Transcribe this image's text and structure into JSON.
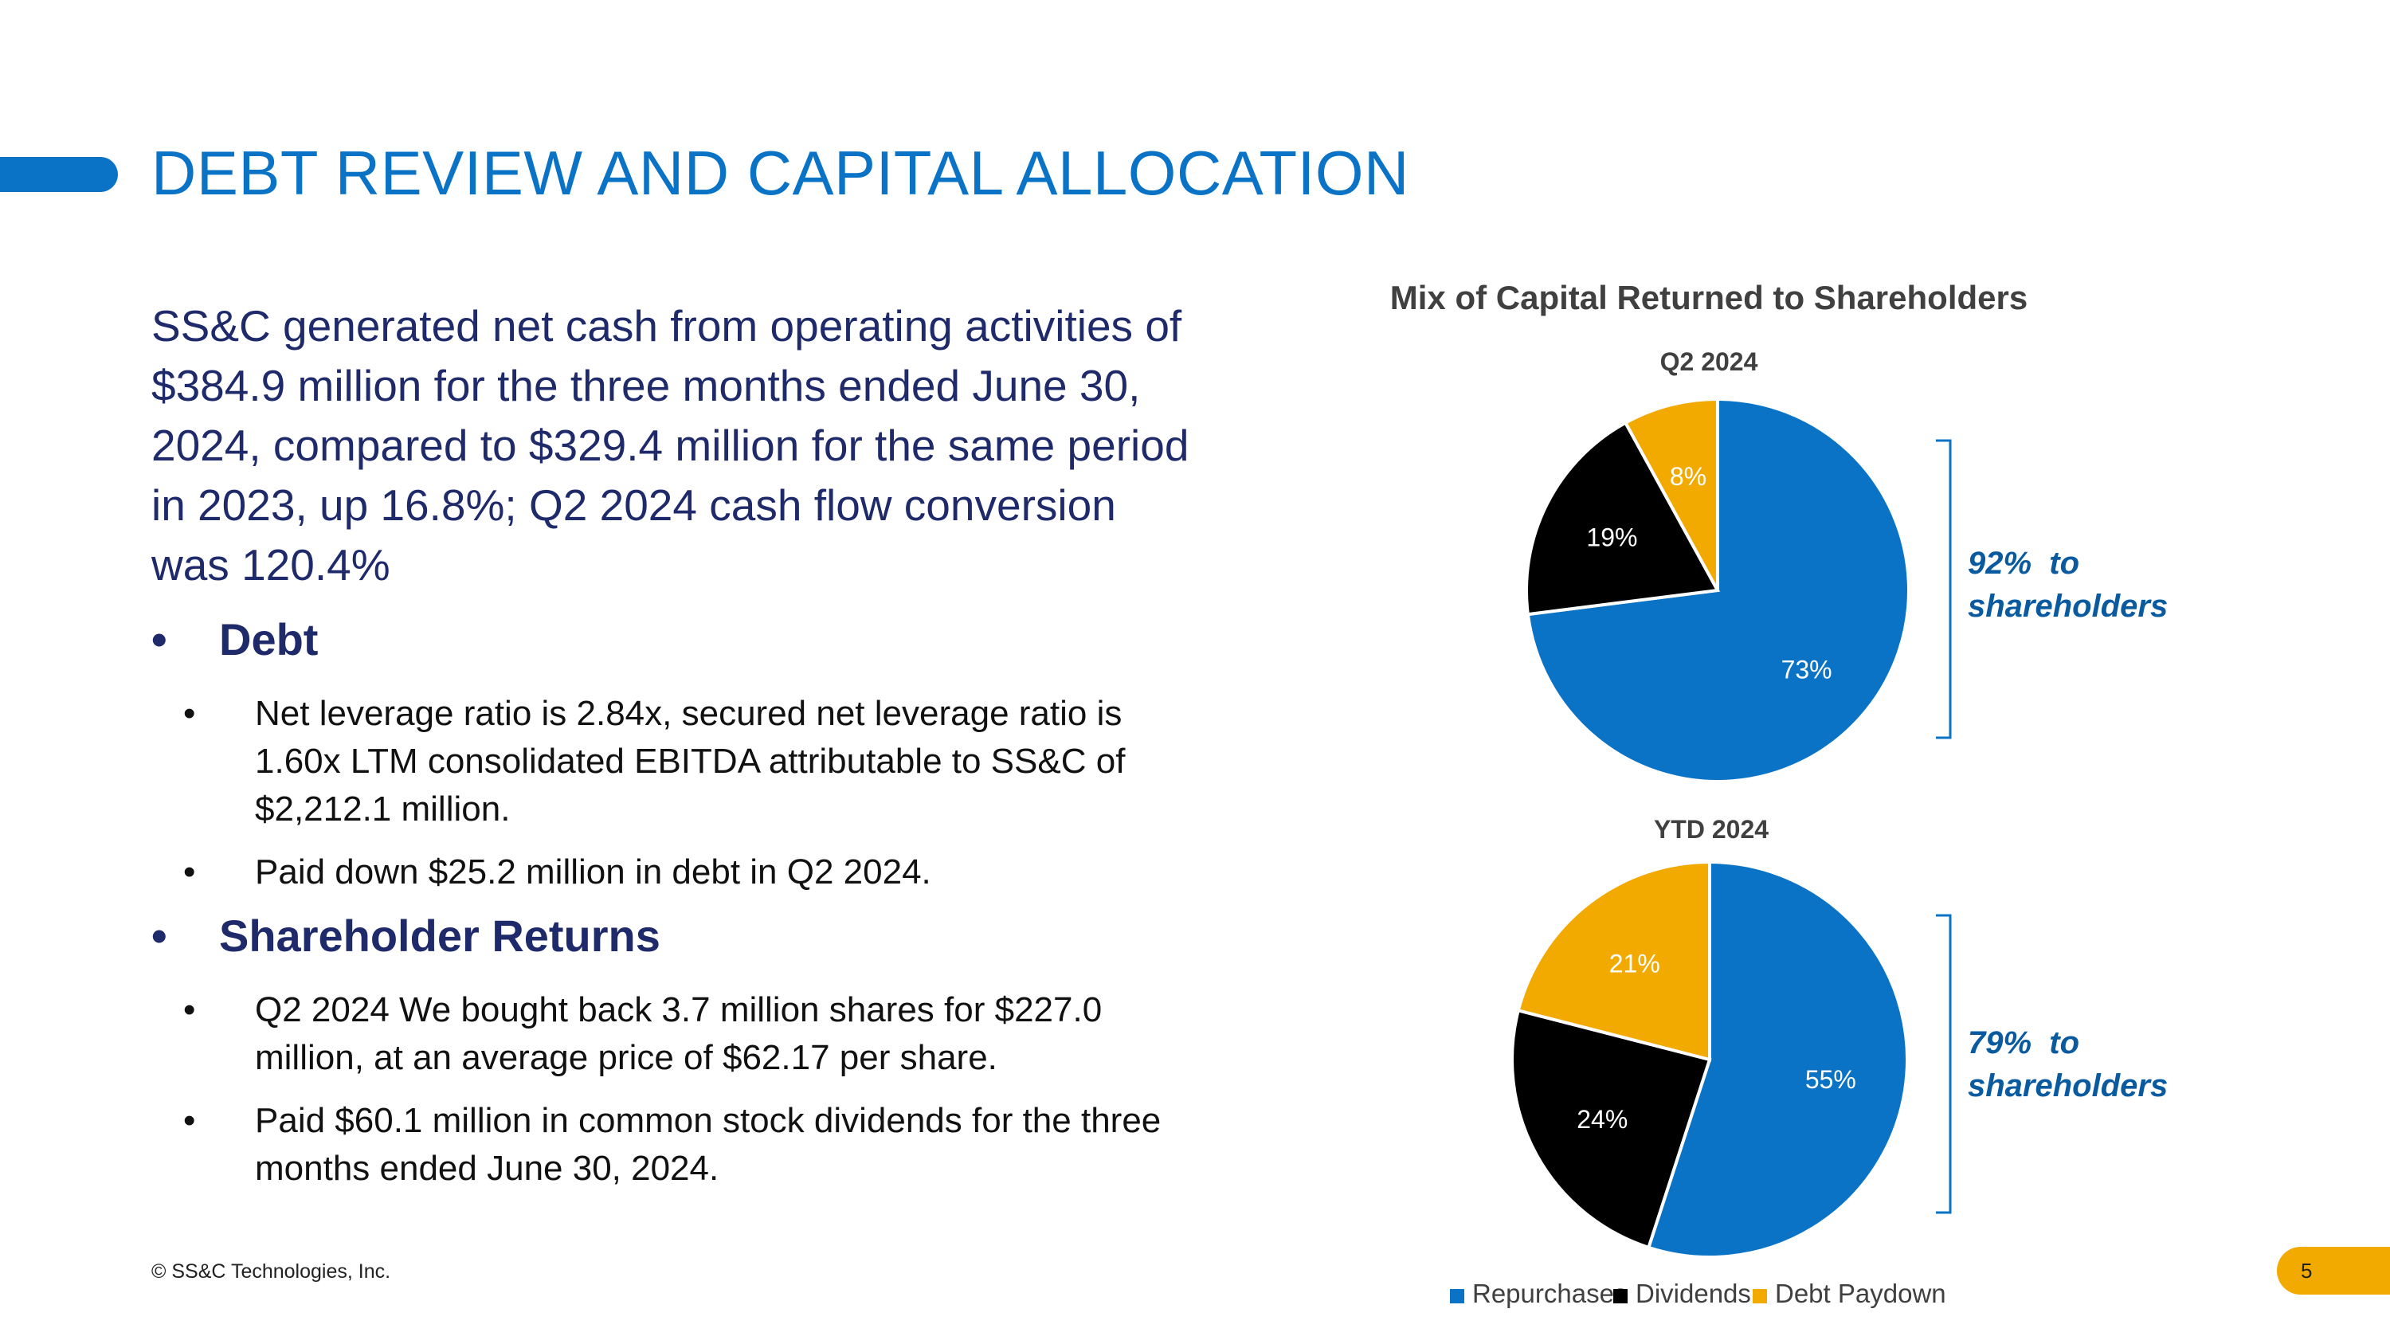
{
  "header": {
    "title": "DEBT REVIEW AND CAPITAL ALLOCATION"
  },
  "lead_text": "SS&C generated net cash from operating activities of $384.9 million for the three months ended June 30, 2024, compared to $329.4 million for the same period in 2023, up 16.8%; Q2 2024 cash flow conversion was 120.4%",
  "sections": [
    {
      "heading": "Debt",
      "bullets": [
        "Net leverage ratio is 2.84x, secured net leverage ratio is 1.60x LTM consolidated EBITDA attributable to SS&C of $2,212.1 million.",
        "Paid down $25.2 million in debt in Q2 2024."
      ]
    },
    {
      "heading": "Shareholder Returns",
      "bullets": [
        "Q2 2024 We bought back 3.7 million shares for $227.0 million, at an average price of $62.17 per share.",
        "Paid $60.1 million in common stock dividends for the three months ended June 30, 2024."
      ]
    }
  ],
  "footer": {
    "copyright": "© SS&C Technologies, Inc.",
    "page_number": "5"
  },
  "colors": {
    "accent": "#0a73c6",
    "navy": "#1f2a6b",
    "repurchases": "#0a73c6",
    "dividends": "#000000",
    "debt_paydown": "#f2a900"
  },
  "chart_data": [
    {
      "type": "pie",
      "title": "Mix of Capital Returned to Shareholders",
      "subtitle": "Q2 2024",
      "categories": [
        "Repurchases",
        "Dividends",
        "Debt Paydown"
      ],
      "values": [
        73,
        19,
        8
      ],
      "labels": [
        "73%",
        "19%",
        "8%"
      ],
      "annotation": "92%  to shareholders",
      "legend": [
        "Repurchases",
        "Dividends",
        "Debt Paydown"
      ],
      "legend_position": "bottom"
    },
    {
      "type": "pie",
      "subtitle": "YTD 2024",
      "categories": [
        "Repurchases",
        "Dividends",
        "Debt Paydown"
      ],
      "values": [
        55,
        24,
        21
      ],
      "labels": [
        "55%",
        "24%",
        "21%"
      ],
      "annotation": "79%  to shareholders"
    }
  ]
}
